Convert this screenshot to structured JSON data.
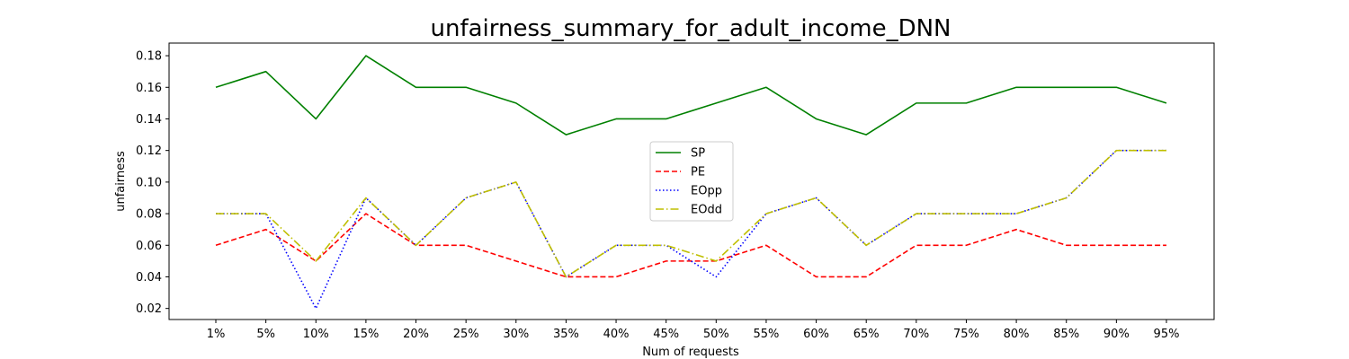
{
  "chart_data": {
    "type": "line",
    "title": "unfairness_summary_for_adult_income_DNN",
    "xlabel": "Num of requests",
    "ylabel": "unfairness",
    "categories": [
      "1%",
      "5%",
      "10%",
      "15%",
      "20%",
      "25%",
      "30%",
      "35%",
      "40%",
      "45%",
      "50%",
      "55%",
      "60%",
      "65%",
      "70%",
      "75%",
      "80%",
      "85%",
      "90%",
      "95%"
    ],
    "ylim": [
      0.013,
      0.188
    ],
    "yticks": [
      0.02,
      0.04,
      0.06,
      0.08,
      0.1,
      0.12,
      0.14,
      0.16,
      0.18
    ],
    "ytick_labels": [
      "0.02",
      "0.04",
      "0.06",
      "0.08",
      "0.10",
      "0.12",
      "0.14",
      "0.16",
      "0.18"
    ],
    "grid": false,
    "legend_position": "center",
    "series": [
      {
        "name": "SP",
        "color": "#008000",
        "style": "solid",
        "values": [
          0.16,
          0.17,
          0.14,
          0.18,
          0.16,
          0.16,
          0.15,
          0.13,
          0.14,
          0.14,
          0.15,
          0.16,
          0.14,
          0.13,
          0.15,
          0.15,
          0.16,
          0.16,
          0.16,
          0.15
        ]
      },
      {
        "name": "PE",
        "color": "#ff0000",
        "style": "dashed",
        "values": [
          0.06,
          0.07,
          0.05,
          0.08,
          0.06,
          0.06,
          0.05,
          0.04,
          0.04,
          0.05,
          0.05,
          0.06,
          0.04,
          0.04,
          0.06,
          0.06,
          0.07,
          0.06,
          0.06,
          0.06
        ]
      },
      {
        "name": "EOpp",
        "color": "#0000ff",
        "style": "dotted",
        "values": [
          0.08,
          0.08,
          0.02,
          0.09,
          0.06,
          0.09,
          0.1,
          0.04,
          0.06,
          0.06,
          0.04,
          0.08,
          0.09,
          0.06,
          0.08,
          0.08,
          0.08,
          0.09,
          0.12,
          0.12
        ]
      },
      {
        "name": " EOdd",
        "color": "#bfbf00",
        "style": "dashdot",
        "values": [
          0.08,
          0.08,
          0.05,
          0.09,
          0.06,
          0.09,
          0.1,
          0.04,
          0.06,
          0.06,
          0.05,
          0.08,
          0.09,
          0.06,
          0.08,
          0.08,
          0.08,
          0.09,
          0.12,
          0.12
        ]
      }
    ]
  }
}
